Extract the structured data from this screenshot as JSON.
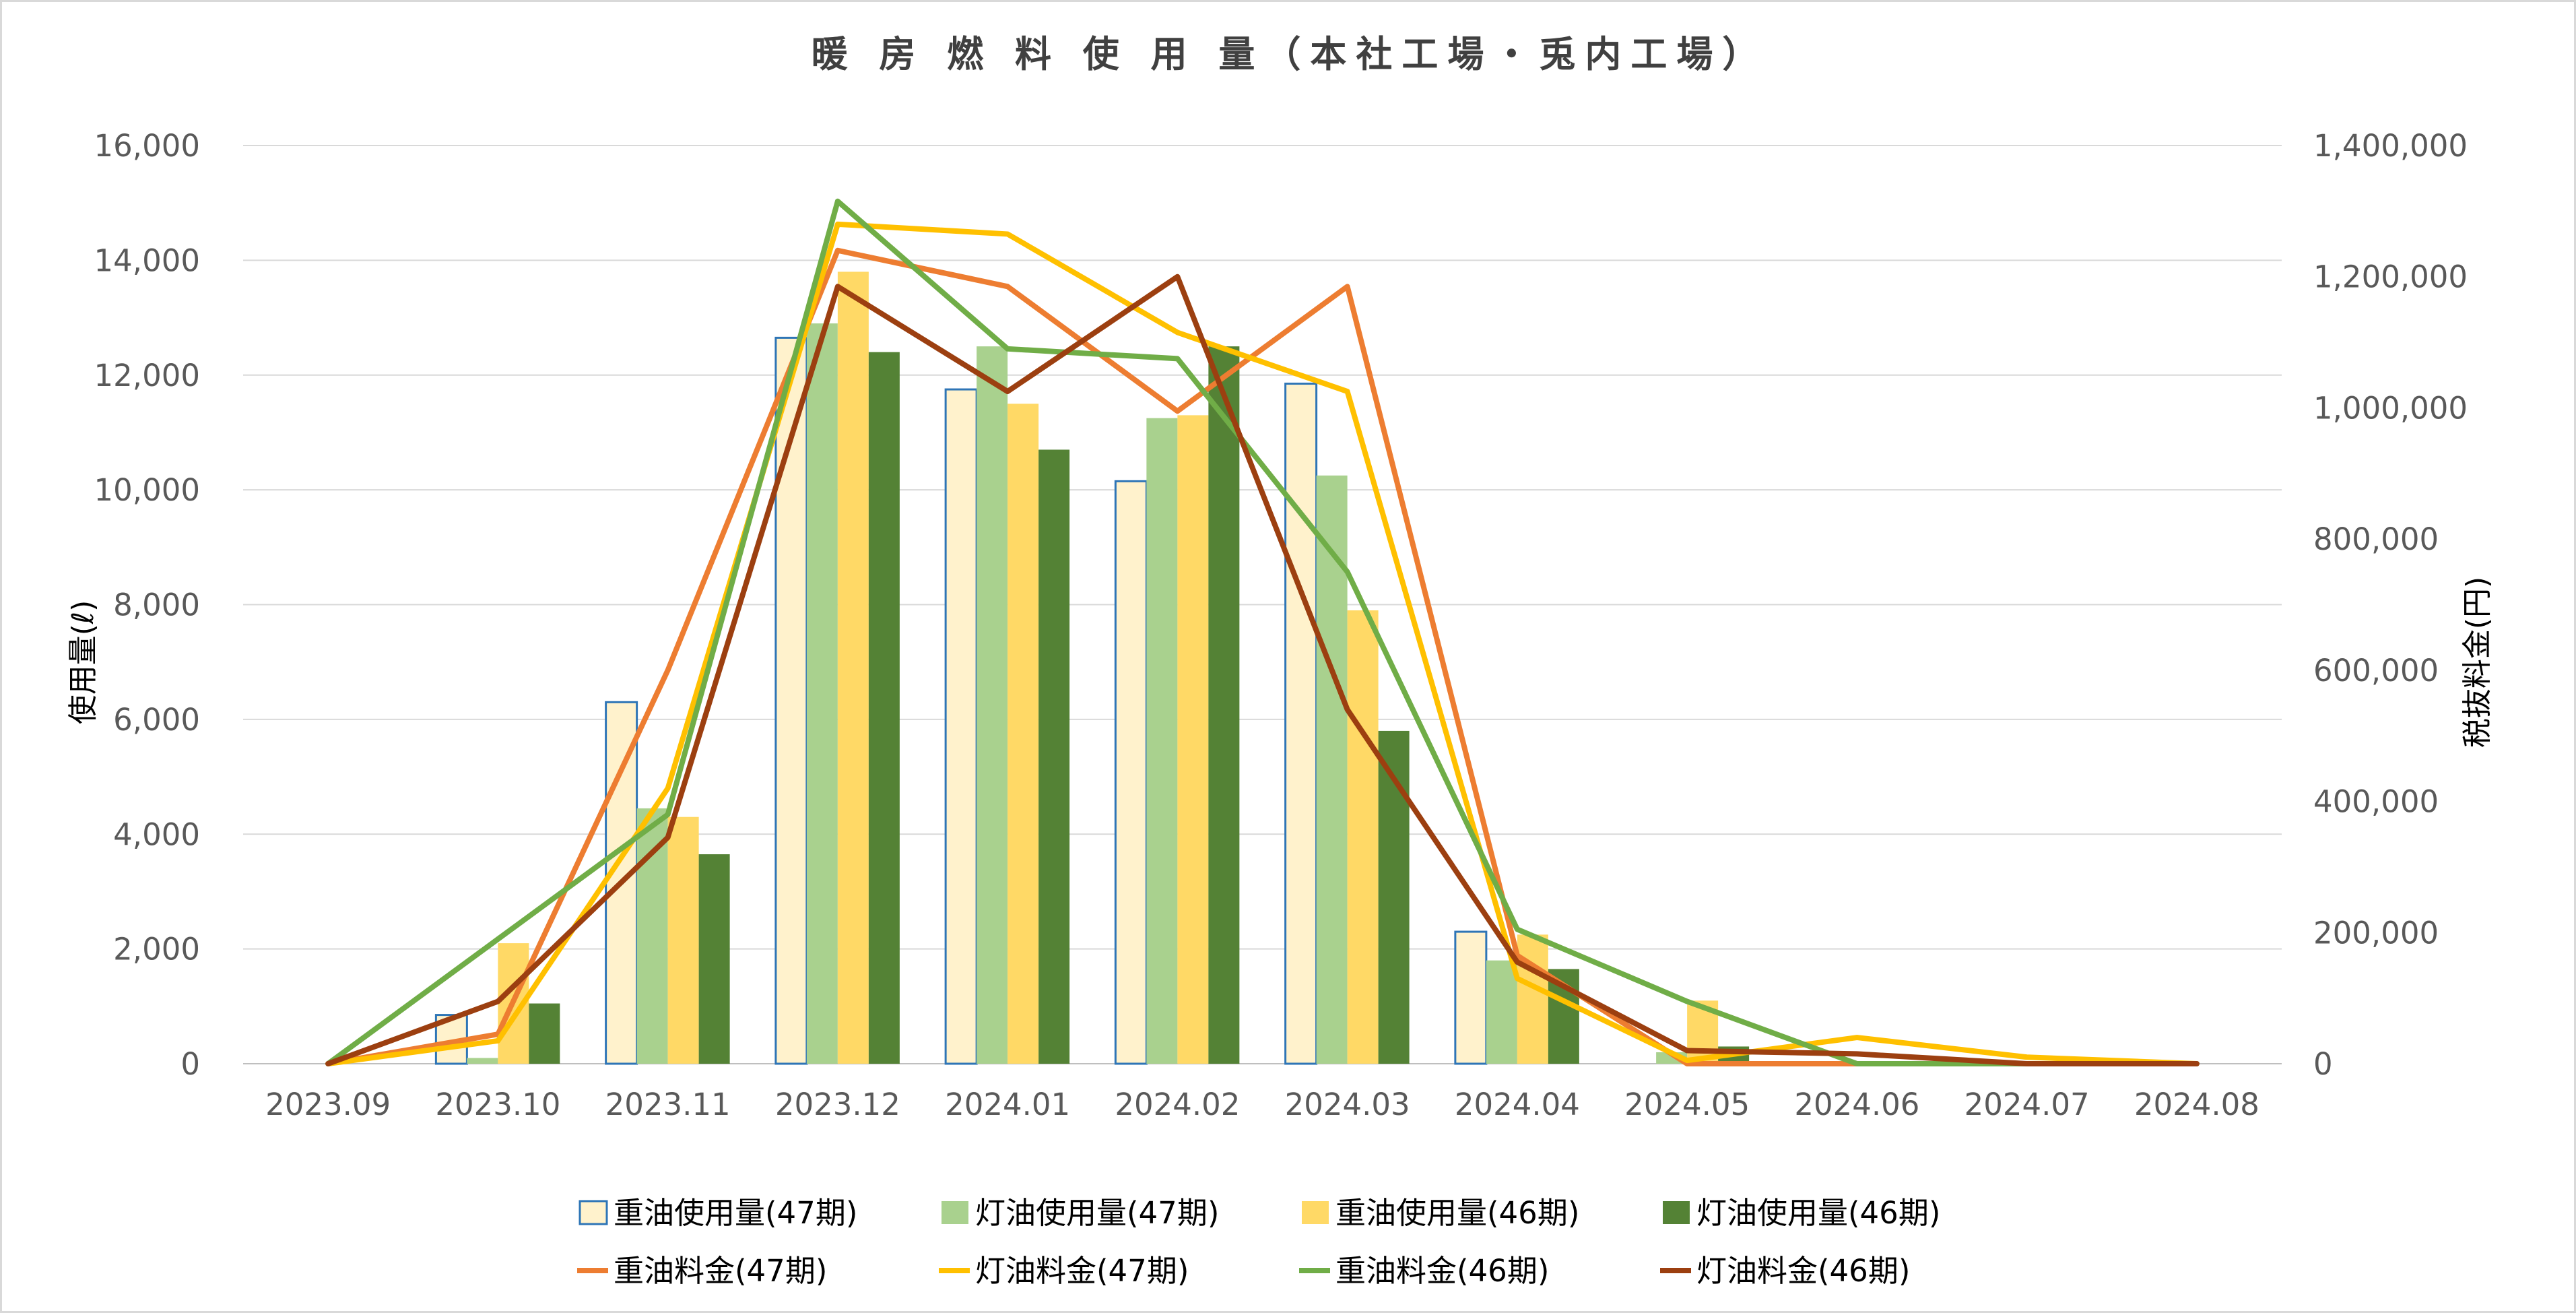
{
  "chart_data": {
    "type": "bar",
    "title": "暖 房 燃 料 使 用 量（本社工場・兎内工場）",
    "categories": [
      "2023.09",
      "2023.10",
      "2023.11",
      "2023.12",
      "2024.01",
      "2024.02",
      "2024.03",
      "2024.04",
      "2024.05",
      "2024.06",
      "2024.07",
      "2024.08"
    ],
    "ylabel": "使用量(ℓ)",
    "y2label": "税抜料金(円)",
    "ylim": [
      0,
      16000
    ],
    "y2lim": [
      0,
      1400000
    ],
    "yticks": [
      "0",
      "2,000",
      "4,000",
      "6,000",
      "8,000",
      "10,000",
      "12,000",
      "14,000",
      "16,000"
    ],
    "y2ticks": [
      "0",
      "200,000",
      "400,000",
      "600,000",
      "800,000",
      "1,000,000",
      "1,200,000",
      "1,400,000"
    ],
    "grid": true,
    "legend_position": "bottom",
    "bar_series": [
      {
        "name": "重油使用量(47期)",
        "color": "#fff2cc",
        "stroke": "#2e75b6",
        "values": [
          0,
          850,
          6300,
          12650,
          11750,
          10150,
          11850,
          2300,
          0,
          0,
          0,
          0
        ]
      },
      {
        "name": "灯油使用量(47期)",
        "color": "#a9d18e",
        "stroke": "",
        "values": [
          0,
          100,
          4450,
          12900,
          12500,
          11250,
          10250,
          1800,
          200,
          0,
          0,
          0
        ]
      },
      {
        "name": "重油使用量(46期)",
        "color": "#ffd966",
        "stroke": "",
        "values": [
          0,
          2100,
          4300,
          13800,
          11500,
          11300,
          7900,
          2250,
          1100,
          0,
          0,
          0
        ]
      },
      {
        "name": "灯油使用量(46期)",
        "color": "#548235",
        "stroke": "",
        "values": [
          0,
          1050,
          3650,
          12400,
          10700,
          12500,
          5800,
          1650,
          300,
          0,
          0,
          0
        ]
      }
    ],
    "line_series": [
      {
        "name": "重油料金(47期)",
        "color": "#ed7d31",
        "values": [
          0,
          45000,
          600000,
          1240000,
          1185000,
          995000,
          1185000,
          165000,
          0,
          0,
          0,
          0
        ]
      },
      {
        "name": "灯油料金(47期)",
        "color": "#ffc000",
        "values": [
          0,
          35000,
          420000,
          1280000,
          1265000,
          1115000,
          1025000,
          130000,
          5000,
          40000,
          10000,
          0
        ]
      },
      {
        "name": "重油料金(46期)",
        "color": "#70ad47",
        "values": [
          0,
          190000,
          380000,
          1315000,
          1090000,
          1075000,
          750000,
          205000,
          95000,
          0,
          0,
          0
        ]
      },
      {
        "name": "灯油料金(46期)",
        "color": "#9c3f10",
        "values": [
          0,
          95000,
          345000,
          1185000,
          1025000,
          1200000,
          540000,
          155000,
          20000,
          15000,
          0,
          0
        ]
      }
    ]
  }
}
